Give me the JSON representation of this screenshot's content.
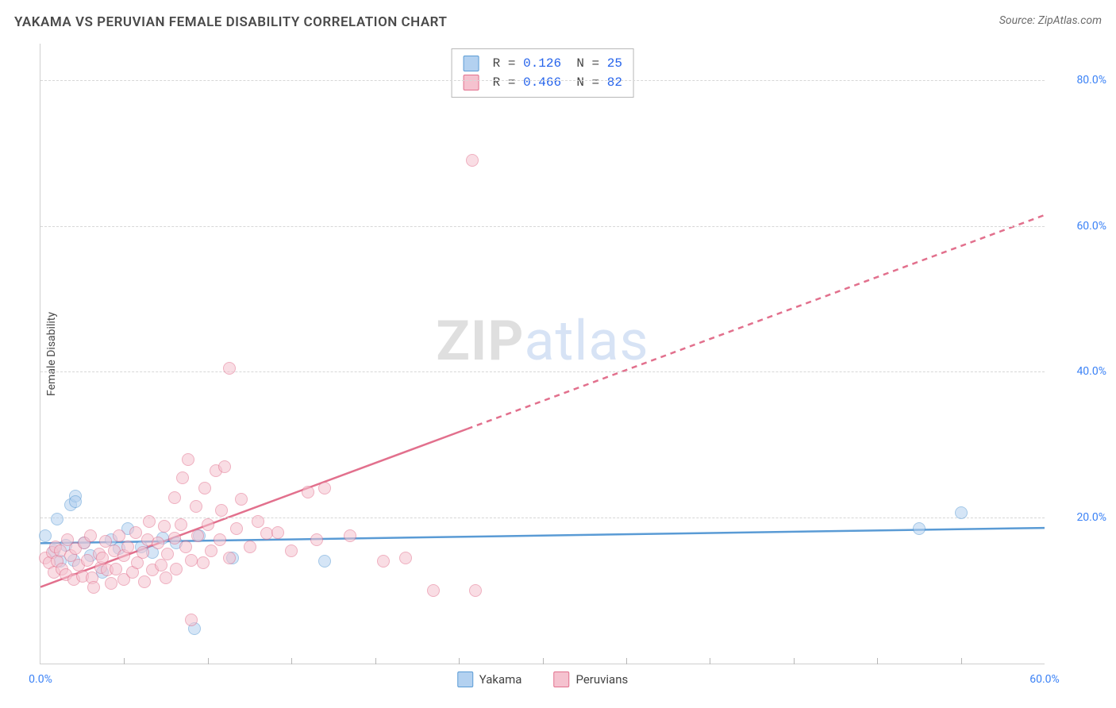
{
  "title": "YAKAMA VS PERUVIAN FEMALE DISABILITY CORRELATION CHART",
  "source_label": "Source: ZipAtlas.com",
  "ylabel": "Female Disability",
  "watermark": {
    "part1": "ZIP",
    "part2": "atlas"
  },
  "chart": {
    "type": "scatter",
    "background_color": "#ffffff",
    "grid_color": "#d7d7d7",
    "axis_color": "#cfcfcf",
    "xlim": [
      0,
      60
    ],
    "ylim": [
      0,
      85
    ],
    "xtick_step": 5,
    "yticks": [
      20,
      40,
      60,
      80
    ],
    "x_labels": [
      {
        "x": 0,
        "text": "0.0%"
      },
      {
        "x": 60,
        "text": "60.0%"
      }
    ],
    "y_labels": [
      {
        "y": 20,
        "text": "20.0%"
      },
      {
        "y": 40,
        "text": "40.0%"
      },
      {
        "y": 60,
        "text": "60.0%"
      },
      {
        "y": 80,
        "text": "80.0%"
      }
    ],
    "tick_label_color": "#3b82f6",
    "tick_label_fontsize": 14,
    "marker_radius": 8,
    "marker_opacity": 0.55,
    "series": [
      {
        "name": "Yakama",
        "fill": "#b3d1f0",
        "stroke": "#5a9bd5",
        "points": [
          [
            0.3,
            17.5
          ],
          [
            0.8,
            15.5
          ],
          [
            1.0,
            19.8
          ],
          [
            1.2,
            14.0
          ],
          [
            1.5,
            16.2
          ],
          [
            1.8,
            21.8
          ],
          [
            2.1,
            23.0
          ],
          [
            2.1,
            22.2
          ],
          [
            2.6,
            16.5
          ],
          [
            3.0,
            14.8
          ],
          [
            3.7,
            12.5
          ],
          [
            4.2,
            17.0
          ],
          [
            4.7,
            15.8
          ],
          [
            5.2,
            18.5
          ],
          [
            6.0,
            16.0
          ],
          [
            6.7,
            15.2
          ],
          [
            7.3,
            17.2
          ],
          [
            8.1,
            16.5
          ],
          [
            9.2,
            4.8
          ],
          [
            9.5,
            17.5
          ],
          [
            11.5,
            14.5
          ],
          [
            17.0,
            14.0
          ],
          [
            52.5,
            18.5
          ],
          [
            55.0,
            20.7
          ],
          [
            2.0,
            14.2
          ]
        ],
        "trend": {
          "slope": 0.035,
          "intercept": 16.5,
          "line_width": 2.5
        },
        "stats": {
          "R": "0.126",
          "N": "25"
        }
      },
      {
        "name": "Peruvians",
        "fill": "#f5c2cf",
        "stroke": "#e2708d",
        "points": [
          [
            0.3,
            14.5
          ],
          [
            0.5,
            13.8
          ],
          [
            0.7,
            15.2
          ],
          [
            0.8,
            12.5
          ],
          [
            0.9,
            16.0
          ],
          [
            1.0,
            14.0
          ],
          [
            1.2,
            15.5
          ],
          [
            1.3,
            13.0
          ],
          [
            1.5,
            12.2
          ],
          [
            1.6,
            17.0
          ],
          [
            1.8,
            14.8
          ],
          [
            2.0,
            11.5
          ],
          [
            2.1,
            15.8
          ],
          [
            2.3,
            13.5
          ],
          [
            2.5,
            12.0
          ],
          [
            2.6,
            16.5
          ],
          [
            2.8,
            14.2
          ],
          [
            3.1,
            11.8
          ],
          [
            3.2,
            10.5
          ],
          [
            3.5,
            15.0
          ],
          [
            3.6,
            13.2
          ],
          [
            3.7,
            14.5
          ],
          [
            3.9,
            16.8
          ],
          [
            4.0,
            12.8
          ],
          [
            4.2,
            11.0
          ],
          [
            4.4,
            15.5
          ],
          [
            4.5,
            13.0
          ],
          [
            4.7,
            17.5
          ],
          [
            5.0,
            14.8
          ],
          [
            5.0,
            11.5
          ],
          [
            5.2,
            16.0
          ],
          [
            5.5,
            12.5
          ],
          [
            5.7,
            18.0
          ],
          [
            5.8,
            13.8
          ],
          [
            6.1,
            15.2
          ],
          [
            6.2,
            11.2
          ],
          [
            6.4,
            17.0
          ],
          [
            6.5,
            19.5
          ],
          [
            6.7,
            12.8
          ],
          [
            7.0,
            16.5
          ],
          [
            7.2,
            13.5
          ],
          [
            7.4,
            18.8
          ],
          [
            7.5,
            11.8
          ],
          [
            7.6,
            15.0
          ],
          [
            8.0,
            17.2
          ],
          [
            8.0,
            22.8
          ],
          [
            8.1,
            13.0
          ],
          [
            8.4,
            19.0
          ],
          [
            8.5,
            25.5
          ],
          [
            8.7,
            16.0
          ],
          [
            8.8,
            28.0
          ],
          [
            9.0,
            14.2
          ],
          [
            9.0,
            6.0
          ],
          [
            9.3,
            21.5
          ],
          [
            9.4,
            17.5
          ],
          [
            9.7,
            13.8
          ],
          [
            9.8,
            24.0
          ],
          [
            10.0,
            19.0
          ],
          [
            10.2,
            15.5
          ],
          [
            10.5,
            26.5
          ],
          [
            10.7,
            17.0
          ],
          [
            10.8,
            21.0
          ],
          [
            11.0,
            27.0
          ],
          [
            11.3,
            14.5
          ],
          [
            11.3,
            40.5
          ],
          [
            11.7,
            18.5
          ],
          [
            12.0,
            22.5
          ],
          [
            12.5,
            16.0
          ],
          [
            13.0,
            19.5
          ],
          [
            13.5,
            17.8
          ],
          [
            14.2,
            18.0
          ],
          [
            15.0,
            15.5
          ],
          [
            16.0,
            23.5
          ],
          [
            16.5,
            17.0
          ],
          [
            17.0,
            24.0
          ],
          [
            18.5,
            17.5
          ],
          [
            20.5,
            14.0
          ],
          [
            21.8,
            14.5
          ],
          [
            23.5,
            10.0
          ],
          [
            25.8,
            69.0
          ],
          [
            26.0,
            10.0
          ],
          [
            3.0,
            17.5
          ]
        ],
        "trend": {
          "slope": 0.85,
          "intercept": 10.5,
          "line_width": 2.5,
          "solid_until_x": 25.5
        },
        "stats": {
          "R": "0.466",
          "N": "82"
        }
      }
    ],
    "legend_bottom": [
      {
        "label": "Yakama",
        "fill": "#b3d1f0",
        "stroke": "#5a9bd5"
      },
      {
        "label": "Peruvians",
        "fill": "#f5c2cf",
        "stroke": "#e2708d"
      }
    ],
    "legend_stats_value_color": "#2563eb"
  }
}
